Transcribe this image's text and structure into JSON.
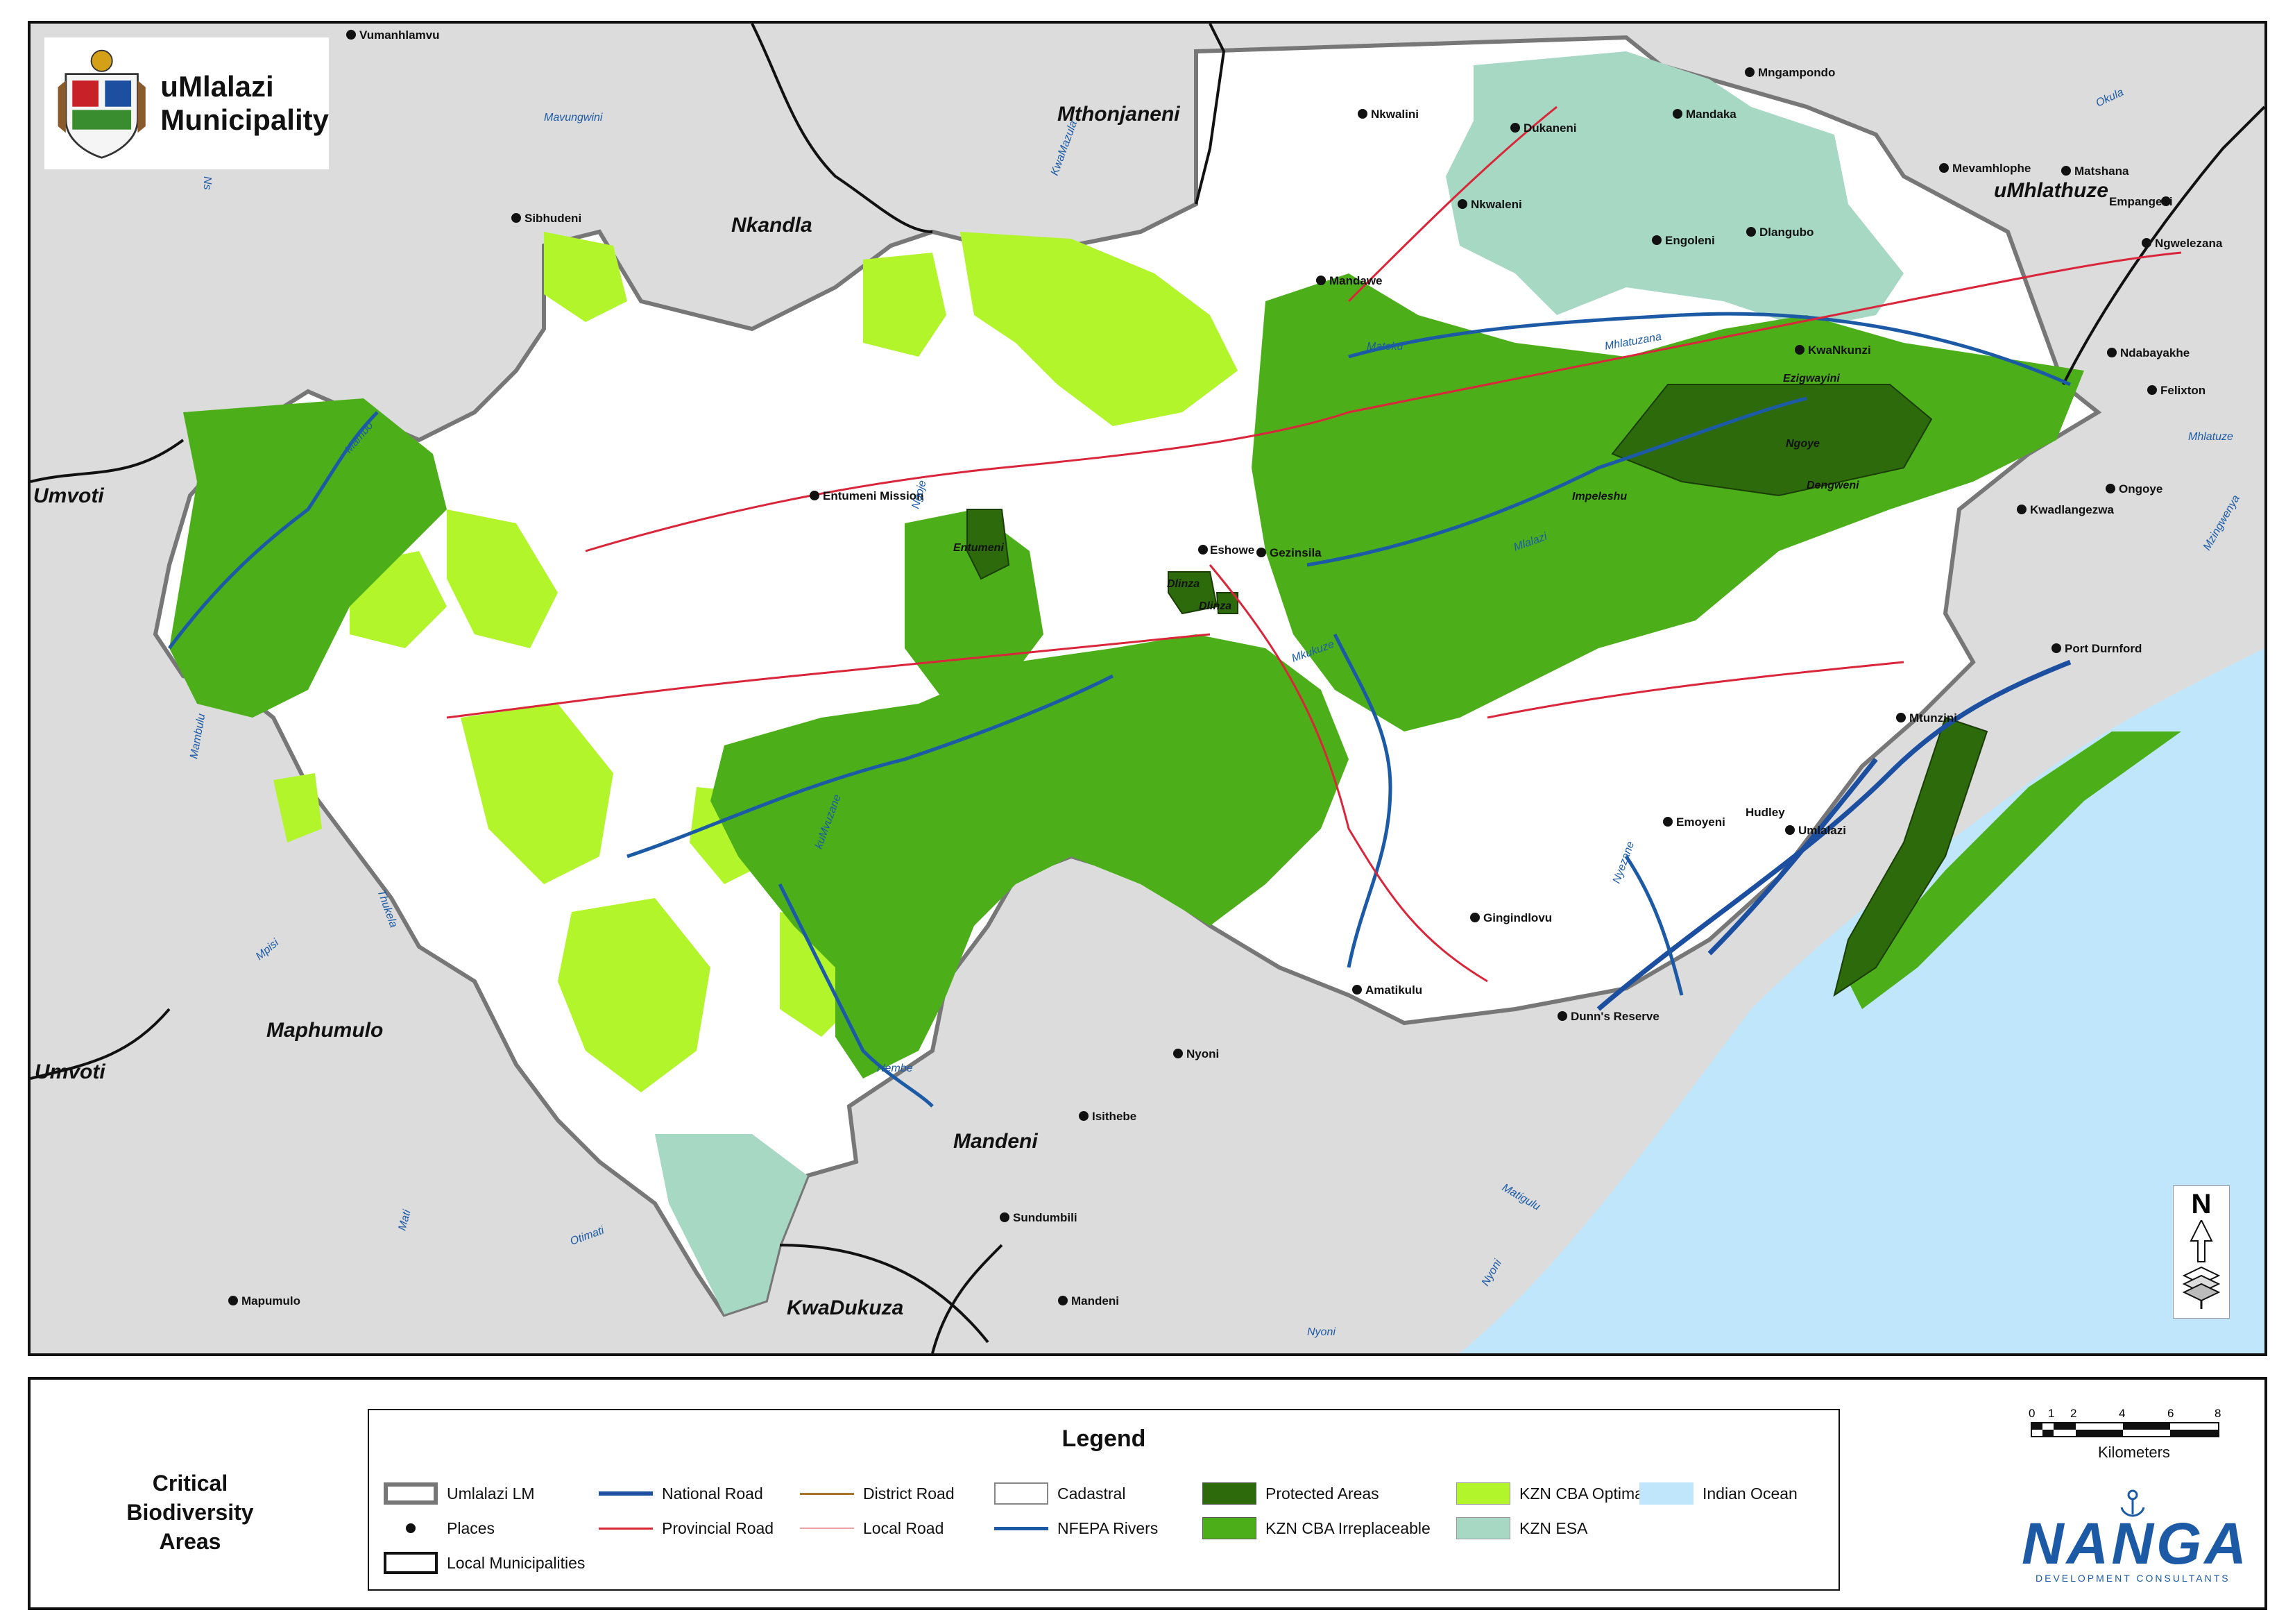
{
  "header": {
    "title_line1": "uMlalazi",
    "title_line2": "Municipality"
  },
  "regions": {
    "mthonjaneni": "Mthonjaneni",
    "nkandla": "Nkandla",
    "umhlathuze": "uMhlathuze",
    "umvoti_top": "Umvoti",
    "umvoti_bottom": "Umvoti",
    "maphumulo": "Maphumulo",
    "mandeni": "Mandeni",
    "kwadukuza": "KwaDukuza"
  },
  "places": {
    "vumanhlamvu": "Vumanhlamvu",
    "sibhudeni": "Sibhudeni",
    "entumeni_mission": "Entumeni Mission",
    "eshowe": "Eshowe",
    "gezinsila": "Gezinsila",
    "nkwalini": "Nkwalini",
    "dukaneni": "Dukaneni",
    "mngampondo": "Mngampondo",
    "mandaka": "Mandaka",
    "nkwaleni": "Nkwaleni",
    "engoleni": "Engoleni",
    "dlangubo": "Dlangubo",
    "mandawe": "Mandawe",
    "kwankunzi": "KwaNkunzi",
    "mevamhlophe": "Mevamhlophe",
    "matshana": "Matshana",
    "empangeni": "Empangeni",
    "ngwelezana": "Ngwelezana",
    "ndabayakhe": "Ndabayakhe",
    "felixton": "Felixton",
    "ongoye": "Ongoye",
    "kwadlangezwa": "Kwadlangezwa",
    "port_durnford": "Port Durnford",
    "mtunzini": "Mtunzini",
    "emoyeni": "Emoyeni",
    "hudley": "Hudley",
    "umlalazi_town": "Umlalazi",
    "gingindlovu": "Gingindlovu",
    "amatikulu": "Amatikulu",
    "dunns_reserve": "Dunn's Reserve",
    "nyoni": "Nyoni",
    "isithebe": "Isithebe",
    "sundumbili": "Sundumbili",
    "mandeni_town": "Mandeni",
    "mapumulo": "Mapumulo"
  },
  "rivers": {
    "mavungwini": "Mavungwini",
    "kwamazula": "KwaMazula",
    "okula": "Okula",
    "mhlatuze": "Mhlatuze",
    "mzingwenya": "Mzingwenya",
    "mateku": "Mateku",
    "mhlatuzana": "Mhlatuzana",
    "ngoje": "Ngoje",
    "mlalazi": "Mlalazi",
    "mkukuze": "Mkukuze",
    "mambo": "Mambo",
    "mambulu": "Mambulu",
    "thukela": "Thukela",
    "mvuzane": "kuMvuzane",
    "mpisi": "Mpisi",
    "mati": "Mati",
    "otimati": "Otimati",
    "nembe": "Nembe",
    "nyezane": "Nyezane",
    "matigulu": "Matigulu",
    "nyoni_river": "Nyoni",
    "nyoni_river2": "Nyoni",
    "ns": "Ns"
  },
  "protected_areas": {
    "entumeni": "Entumeni",
    "dlinza1": "Dlinza",
    "dlinza2": "Dlinza",
    "ngoye": "Ngoye",
    "ezigwayini": "Ezigwayini",
    "dengweni": "Dengweni",
    "impeleshu": "Impeleshu"
  },
  "north_arrow": {
    "letter": "N"
  },
  "panel": {
    "title": "Critical Biodiversity Areas"
  },
  "legend": {
    "title": "Legend",
    "items": [
      {
        "label": "Umlalazi LM",
        "symbol": "lm-border"
      },
      {
        "label": "Places",
        "symbol": "dot"
      },
      {
        "label": "Local Municipalities",
        "symbol": "black-border"
      },
      {
        "label": "National Road",
        "symbol": "line",
        "color": "#1c4fa0"
      },
      {
        "label": "Provincial Road",
        "symbol": "line",
        "color": "#d9263a"
      },
      {
        "label": "District Road",
        "symbol": "line",
        "color": "#a6752c"
      },
      {
        "label": "Local Road",
        "symbol": "line",
        "color": "#f0a0a8"
      },
      {
        "label": "Cadastral",
        "symbol": "box",
        "color": "#ffffff"
      },
      {
        "label": "NFEPA Rivers",
        "symbol": "line",
        "color": "#1c4fa0"
      },
      {
        "label": "Protected Areas",
        "symbol": "box",
        "color": "#2d6a0b"
      },
      {
        "label": "KZN CBA Irreplaceable",
        "symbol": "box",
        "color": "#4caf1a"
      },
      {
        "label": "KZN CBA Optimal",
        "symbol": "box",
        "color": "#b2f52a"
      },
      {
        "label": "KZN ESA",
        "symbol": "box",
        "color": "#a6d8c4"
      },
      {
        "label": "Indian Ocean",
        "symbol": "box",
        "color": "#bfe6fb"
      }
    ]
  },
  "scale": {
    "ticks": [
      "0",
      "1",
      "2",
      "4",
      "6",
      "8"
    ],
    "unit": "Kilometers"
  },
  "company": {
    "name": "NANGA",
    "subtitle": "DEVELOPMENT CONSULTANTS"
  },
  "colors": {
    "background_land": "#dcdcdc",
    "municipality_fill": "#ffffff",
    "cba_irreplaceable": "#4caf1a",
    "cba_optimal": "#b2f52a",
    "protected": "#2d6a0b",
    "esa": "#a6d8c4",
    "ocean": "#bfe6fb",
    "national_road": "#1c4fa0",
    "provincial_road": "#d9263a"
  }
}
